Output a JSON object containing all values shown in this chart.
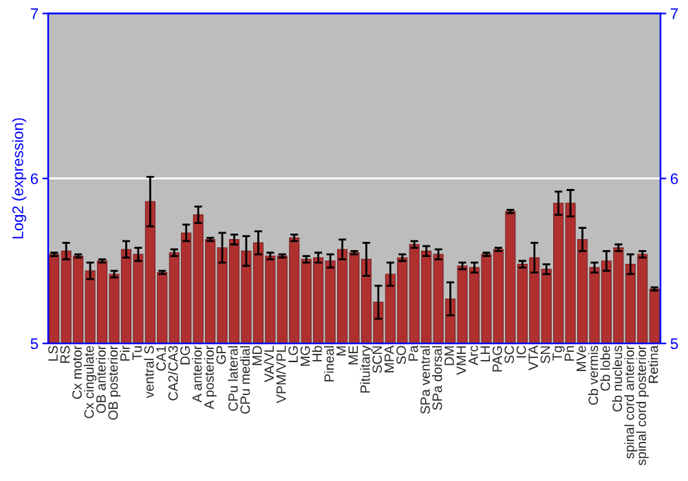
{
  "chart_data": {
    "type": "bar",
    "ylabel": "Log2 (expression)",
    "categories": [
      "LS",
      "RS",
      "Cx motor",
      "Cx cingulate",
      "OB anterior",
      "OB posterior",
      "Pir",
      "Tu",
      "ventral S",
      "CA1",
      "CA2/CA3",
      "DG",
      "A anterior",
      "A posterior",
      "GP",
      "CPu lateral",
      "CPu medial",
      "MD",
      "VA/VL",
      "VPM/VPL",
      "LG",
      "MG",
      "Hb",
      "Pineal",
      "M",
      "ME",
      "Pituitary",
      "SCN",
      "MPA",
      "SO",
      "Pa",
      "SPa ventral",
      "SPa dorsal",
      "DM",
      "VMH",
      "Arc",
      "LH",
      "PAG",
      "SC",
      "IC",
      "VTA",
      "SN",
      "Tg",
      "Pn",
      "MVe",
      "Cb vermis",
      "Cb lobe",
      "Cb nucleus",
      "spinal cord anterior",
      "spinal cord posterior",
      "Retina"
    ],
    "values": [
      5.54,
      5.56,
      5.53,
      5.44,
      5.5,
      5.42,
      5.57,
      5.54,
      5.86,
      5.43,
      5.55,
      5.67,
      5.78,
      5.63,
      5.58,
      5.63,
      5.56,
      5.61,
      5.53,
      5.53,
      5.64,
      5.51,
      5.52,
      5.5,
      5.57,
      5.55,
      5.51,
      5.25,
      5.42,
      5.52,
      5.6,
      5.56,
      5.54,
      5.27,
      5.47,
      5.46,
      5.54,
      5.57,
      5.8,
      5.48,
      5.52,
      5.45,
      5.85,
      5.85,
      5.63,
      5.46,
      5.5,
      5.58,
      5.48,
      5.54,
      5.33
    ],
    "errors": [
      0.01,
      0.05,
      0.01,
      0.05,
      0.01,
      0.02,
      0.05,
      0.04,
      0.15,
      0.01,
      0.02,
      0.05,
      0.05,
      0.01,
      0.09,
      0.03,
      0.09,
      0.07,
      0.02,
      0.01,
      0.02,
      0.02,
      0.03,
      0.04,
      0.06,
      0.01,
      0.1,
      0.1,
      0.07,
      0.02,
      0.02,
      0.03,
      0.03,
      0.1,
      0.02,
      0.03,
      0.01,
      0.01,
      0.01,
      0.02,
      0.09,
      0.03,
      0.07,
      0.08,
      0.07,
      0.03,
      0.06,
      0.02,
      0.06,
      0.02,
      0.01
    ],
    "color": "#b03030",
    "ylim": [
      5,
      7
    ],
    "yticks": [
      5,
      6,
      7
    ],
    "y2lim": [
      5,
      7
    ],
    "y2ticks": [
      5,
      6,
      7
    ],
    "grid": "y"
  }
}
